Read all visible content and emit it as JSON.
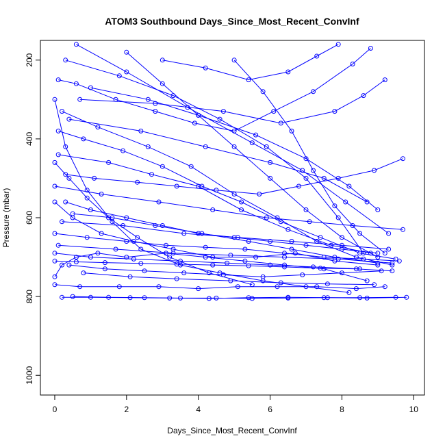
{
  "chart_data": {
    "type": "scatter",
    "title": "ATOM3 Southbound Days_Since_Most_Recent_ConvInf",
    "xlabel": "Days_Since_Most_Recent_ConvInf",
    "ylabel": "Pressure (mbar)",
    "xlim": [
      -0.4,
      10.3
    ],
    "ylim": [
      1050,
      150
    ],
    "y_reversed": true,
    "x_ticks": [
      0,
      2,
      4,
      6,
      8,
      10
    ],
    "y_ticks": [
      200,
      400,
      600,
      800,
      1000
    ],
    "grid": false,
    "legend": "none",
    "style": "points connected by lines (open circles)",
    "color": "#0000ff",
    "series": [
      {
        "values": [
          [
            0.0,
            750
          ],
          [
            0.2,
            720
          ],
          [
            0.6,
            700
          ],
          [
            1.2,
            690
          ],
          [
            2.0,
            700
          ],
          [
            3.1,
            690
          ],
          [
            4.2,
            700
          ],
          [
            5.3,
            710
          ],
          [
            6.4,
            720
          ],
          [
            7.5,
            730
          ],
          [
            8.7,
            760
          ]
        ]
      },
      {
        "values": [
          [
            0.0,
            300
          ],
          [
            0.3,
            420
          ],
          [
            0.9,
            530
          ],
          [
            1.6,
            610
          ],
          [
            2.4,
            680
          ],
          [
            3.5,
            720
          ],
          [
            4.6,
            740
          ],
          [
            5.8,
            760
          ],
          [
            7.0,
            775
          ],
          [
            8.2,
            790
          ]
        ]
      },
      {
        "values": [
          [
            0.1,
            380
          ],
          [
            0.8,
            400
          ],
          [
            1.9,
            430
          ],
          [
            3.0,
            470
          ],
          [
            4.1,
            520
          ],
          [
            5.2,
            560
          ],
          [
            6.3,
            610
          ],
          [
            7.4,
            650
          ],
          [
            8.5,
            690
          ],
          [
            9.5,
            705
          ]
        ]
      },
      {
        "values": [
          [
            0.0,
            560
          ],
          [
            0.5,
            600
          ],
          [
            1.3,
            640
          ],
          [
            2.2,
            660
          ],
          [
            3.3,
            680
          ],
          [
            4.4,
            700
          ],
          [
            5.6,
            700
          ],
          [
            6.7,
            690
          ],
          [
            7.8,
            710
          ],
          [
            9.0,
            720
          ]
        ]
      },
      {
        "values": [
          [
            0.0,
            770
          ],
          [
            0.7,
            775
          ],
          [
            1.8,
            775
          ],
          [
            2.9,
            775
          ],
          [
            4.0,
            780
          ],
          [
            5.1,
            775
          ],
          [
            6.2,
            775
          ],
          [
            7.3,
            775
          ],
          [
            8.4,
            780
          ],
          [
            9.2,
            775
          ]
        ]
      },
      {
        "values": [
          [
            0.2,
            802
          ],
          [
            1.0,
            802
          ],
          [
            2.1,
            803
          ],
          [
            3.2,
            804
          ],
          [
            4.3,
            805
          ],
          [
            5.4,
            803
          ],
          [
            6.5,
            802
          ],
          [
            7.6,
            803
          ],
          [
            8.7,
            804
          ],
          [
            9.8,
            802
          ]
        ]
      },
      {
        "values": [
          [
            0.1,
            250
          ],
          [
            0.6,
            260
          ],
          [
            1.7,
            300
          ],
          [
            2.8,
            330
          ],
          [
            3.9,
            360
          ],
          [
            5.0,
            380
          ],
          [
            6.1,
            330
          ],
          [
            7.2,
            280
          ],
          [
            8.3,
            210
          ],
          [
            8.8,
            170
          ]
        ]
      },
      {
        "values": [
          [
            0.3,
            490
          ],
          [
            1.1,
            500
          ],
          [
            2.3,
            510
          ],
          [
            3.4,
            520
          ],
          [
            4.5,
            530
          ],
          [
            5.7,
            540
          ],
          [
            6.8,
            520
          ],
          [
            7.9,
            500
          ],
          [
            8.9,
            480
          ],
          [
            9.7,
            450
          ]
        ]
      },
      {
        "values": [
          [
            0.0,
            640
          ],
          [
            0.9,
            650
          ],
          [
            2.0,
            660
          ],
          [
            3.1,
            670
          ],
          [
            4.2,
            675
          ],
          [
            5.3,
            680
          ],
          [
            6.4,
            690
          ],
          [
            7.5,
            700
          ],
          [
            8.6,
            705
          ],
          [
            9.6,
            710
          ]
        ]
      },
      {
        "values": [
          [
            0.4,
            720
          ],
          [
            1.4,
            730
          ],
          [
            2.5,
            735
          ],
          [
            3.6,
            740
          ],
          [
            4.7,
            745
          ],
          [
            5.8,
            750
          ],
          [
            6.9,
            745
          ],
          [
            8.0,
            740
          ],
          [
            9.1,
            735
          ]
        ]
      },
      {
        "values": [
          [
            0.2,
            330
          ],
          [
            1.2,
            370
          ],
          [
            2.6,
            420
          ],
          [
            3.8,
            470
          ],
          [
            5.0,
            540
          ],
          [
            6.2,
            600
          ],
          [
            7.3,
            660
          ],
          [
            8.4,
            700
          ],
          [
            9.4,
            720
          ]
        ]
      },
      {
        "values": [
          [
            0.1,
            440
          ],
          [
            1.5,
            460
          ],
          [
            2.7,
            490
          ],
          [
            4.0,
            520
          ],
          [
            5.2,
            580
          ],
          [
            6.5,
            630
          ],
          [
            7.7,
            670
          ],
          [
            8.8,
            690
          ]
        ]
      },
      {
        "values": [
          [
            0.5,
            590
          ],
          [
            1.6,
            600
          ],
          [
            2.8,
            620
          ],
          [
            4.1,
            640
          ],
          [
            5.4,
            660
          ],
          [
            6.6,
            680
          ],
          [
            7.8,
            700
          ],
          [
            9.0,
            715
          ]
        ]
      },
      {
        "values": [
          [
            0.0,
            690
          ],
          [
            1.0,
            700
          ],
          [
            2.2,
            705
          ],
          [
            3.5,
            710
          ],
          [
            4.8,
            715
          ],
          [
            6.0,
            720
          ],
          [
            7.2,
            725
          ],
          [
            8.5,
            730
          ]
        ]
      },
      {
        "values": [
          [
            0.3,
            200
          ],
          [
            1.8,
            240
          ],
          [
            3.3,
            290
          ],
          [
            4.6,
            350
          ],
          [
            5.9,
            420
          ],
          [
            7.0,
            500
          ],
          [
            7.9,
            600
          ],
          [
            8.6,
            690
          ]
        ]
      },
      {
        "values": [
          [
            0.6,
            160
          ],
          [
            2.0,
            230
          ],
          [
            3.7,
            320
          ],
          [
            5.5,
            410
          ],
          [
            6.9,
            480
          ],
          [
            8.1,
            560
          ],
          [
            9.3,
            640
          ]
        ]
      },
      {
        "values": [
          [
            0.0,
            520
          ],
          [
            1.3,
            540
          ],
          [
            2.9,
            560
          ],
          [
            4.4,
            580
          ],
          [
            5.9,
            600
          ],
          [
            7.1,
            610
          ],
          [
            8.3,
            620
          ],
          [
            9.7,
            630
          ]
        ]
      },
      {
        "values": [
          [
            0.8,
            740
          ],
          [
            2.1,
            750
          ],
          [
            3.4,
            755
          ],
          [
            4.9,
            760
          ],
          [
            6.3,
            765
          ],
          [
            7.6,
            768
          ],
          [
            8.9,
            770
          ]
        ]
      },
      {
        "values": [
          [
            0.2,
            610
          ],
          [
            1.9,
            620
          ],
          [
            3.6,
            640
          ],
          [
            5.1,
            650
          ],
          [
            6.6,
            660
          ],
          [
            8.0,
            670
          ],
          [
            9.3,
            680
          ]
        ]
      },
      {
        "values": [
          [
            0.4,
            350
          ],
          [
            2.4,
            380
          ],
          [
            4.2,
            420
          ],
          [
            6.0,
            460
          ],
          [
            7.5,
            500
          ],
          [
            8.7,
            560
          ]
        ]
      },
      {
        "values": [
          [
            1.0,
            270
          ],
          [
            2.6,
            300
          ],
          [
            4.0,
            340
          ],
          [
            5.6,
            390
          ],
          [
            7.0,
            450
          ],
          [
            8.2,
            520
          ],
          [
            9.0,
            580
          ]
        ]
      },
      {
        "values": [
          [
            0.1,
            670
          ],
          [
            1.7,
            680
          ],
          [
            3.3,
            690
          ],
          [
            4.9,
            695
          ],
          [
            6.4,
            700
          ],
          [
            7.9,
            705
          ],
          [
            9.4,
            715
          ]
        ]
      },
      {
        "values": [
          [
            0.0,
            460
          ],
          [
            0.4,
            500
          ],
          [
            0.9,
            550
          ],
          [
            1.5,
            600
          ],
          [
            2.3,
            650
          ],
          [
            3.2,
            700
          ],
          [
            4.3,
            740
          ],
          [
            5.5,
            770
          ]
        ]
      },
      {
        "values": [
          [
            2.0,
            180
          ],
          [
            3.0,
            260
          ],
          [
            4.0,
            340
          ],
          [
            5.0,
            420
          ],
          [
            6.0,
            500
          ],
          [
            7.0,
            580
          ],
          [
            8.0,
            650
          ],
          [
            9.0,
            700
          ]
        ]
      },
      {
        "values": [
          [
            0.7,
            300
          ],
          [
            2.8,
            310
          ],
          [
            4.7,
            330
          ],
          [
            6.3,
            360
          ],
          [
            7.8,
            330
          ],
          [
            8.6,
            290
          ],
          [
            9.2,
            250
          ]
        ]
      },
      {
        "values": [
          [
            5.0,
            200
          ],
          [
            5.8,
            280
          ],
          [
            6.6,
            380
          ],
          [
            7.2,
            480
          ],
          [
            7.8,
            570
          ],
          [
            8.5,
            640
          ],
          [
            9.2,
            690
          ]
        ]
      },
      {
        "values": [
          [
            3.0,
            200
          ],
          [
            4.2,
            220
          ],
          [
            5.4,
            250
          ],
          [
            6.5,
            230
          ],
          [
            7.3,
            190
          ],
          [
            7.9,
            160
          ]
        ]
      },
      {
        "values": [
          [
            0.3,
            560
          ],
          [
            1.0,
            580
          ],
          [
            2.0,
            600
          ],
          [
            3.0,
            620
          ],
          [
            4.0,
            640
          ],
          [
            5.0,
            650
          ],
          [
            6.0,
            660
          ],
          [
            7.0,
            670
          ],
          [
            8.0,
            680
          ],
          [
            9.0,
            690
          ]
        ]
      },
      {
        "values": [
          [
            0.5,
            800
          ],
          [
            1.5,
            802
          ],
          [
            2.5,
            803
          ],
          [
            3.5,
            804
          ],
          [
            4.5,
            804
          ],
          [
            5.5,
            805
          ],
          [
            6.5,
            804
          ],
          [
            7.5,
            803
          ],
          [
            8.5,
            803
          ],
          [
            9.5,
            802
          ]
        ]
      },
      {
        "values": [
          [
            0.0,
            710
          ],
          [
            0.6,
            712
          ],
          [
            1.4,
            714
          ],
          [
            2.4,
            716
          ],
          [
            3.4,
            718
          ],
          [
            4.4,
            720
          ],
          [
            5.4,
            722
          ],
          [
            6.4,
            725
          ],
          [
            7.4,
            728
          ],
          [
            8.4,
            730
          ],
          [
            9.4,
            735
          ]
        ]
      }
    ]
  }
}
